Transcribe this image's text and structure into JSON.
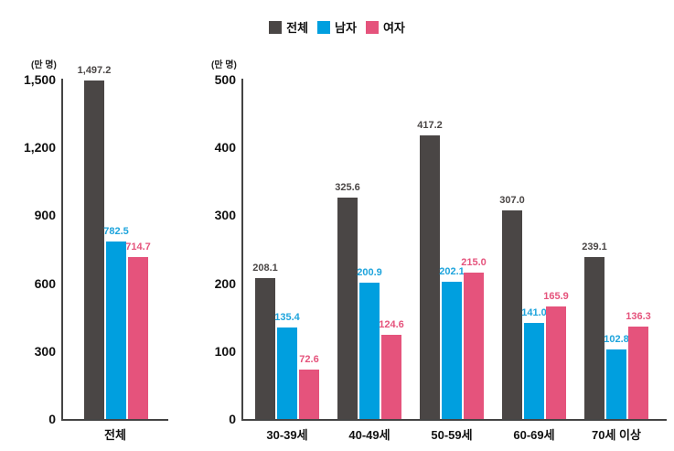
{
  "legend": {
    "items": [
      {
        "label": "전체",
        "color": "#4a4645"
      },
      {
        "label": "남자",
        "color": "#009fdf"
      },
      {
        "label": "여자",
        "color": "#e5537c"
      }
    ]
  },
  "left_panel": {
    "unit": "(만 명)",
    "yticks": [
      "0",
      "300",
      "600",
      "900",
      "1,200",
      "1,500"
    ],
    "category": "전체",
    "labels": [
      "1,497.2",
      "782.5",
      "714.7"
    ]
  },
  "right_panel": {
    "unit": "(만 명)",
    "yticks": [
      "0",
      "100",
      "200",
      "300",
      "400",
      "500"
    ],
    "categories": [
      "30-39세",
      "40-49세",
      "50-59세",
      "60-69세",
      "70세 이상"
    ],
    "labels": {
      "total": [
        "208.1",
        "325.6",
        "417.2",
        "307.0",
        "239.1"
      ],
      "male": [
        "135.4",
        "200.9",
        "202.1",
        "141.0",
        "102.8"
      ],
      "female": [
        "72.6",
        "124.6",
        "215.0",
        "165.9",
        "136.3"
      ]
    }
  },
  "chart_data": [
    {
      "type": "bar",
      "title": "",
      "xlabel": "",
      "ylabel": "(만 명)",
      "ylim": [
        0,
        1500
      ],
      "yticks": [
        0,
        300,
        600,
        900,
        1200,
        1500
      ],
      "categories": [
        "전체"
      ],
      "series": [
        {
          "name": "전체",
          "color": "#4a4645",
          "values": [
            1497.2
          ]
        },
        {
          "name": "남자",
          "color": "#009fdf",
          "values": [
            782.5
          ]
        },
        {
          "name": "여자",
          "color": "#e5537c",
          "values": [
            714.7
          ]
        }
      ],
      "legend_position": "top-center",
      "grid": false
    },
    {
      "type": "bar",
      "title": "",
      "xlabel": "",
      "ylabel": "(만 명)",
      "ylim": [
        0,
        500
      ],
      "yticks": [
        0,
        100,
        200,
        300,
        400,
        500
      ],
      "categories": [
        "30-39세",
        "40-49세",
        "50-59세",
        "60-69세",
        "70세 이상"
      ],
      "series": [
        {
          "name": "전체",
          "color": "#4a4645",
          "values": [
            208.1,
            325.6,
            417.2,
            307.0,
            239.1
          ]
        },
        {
          "name": "남자",
          "color": "#009fdf",
          "values": [
            135.4,
            200.9,
            202.1,
            141.0,
            102.8
          ]
        },
        {
          "name": "여자",
          "color": "#e5537c",
          "values": [
            72.6,
            124.6,
            215.0,
            165.9,
            136.3
          ]
        }
      ],
      "legend_position": "top-center",
      "grid": false
    }
  ]
}
